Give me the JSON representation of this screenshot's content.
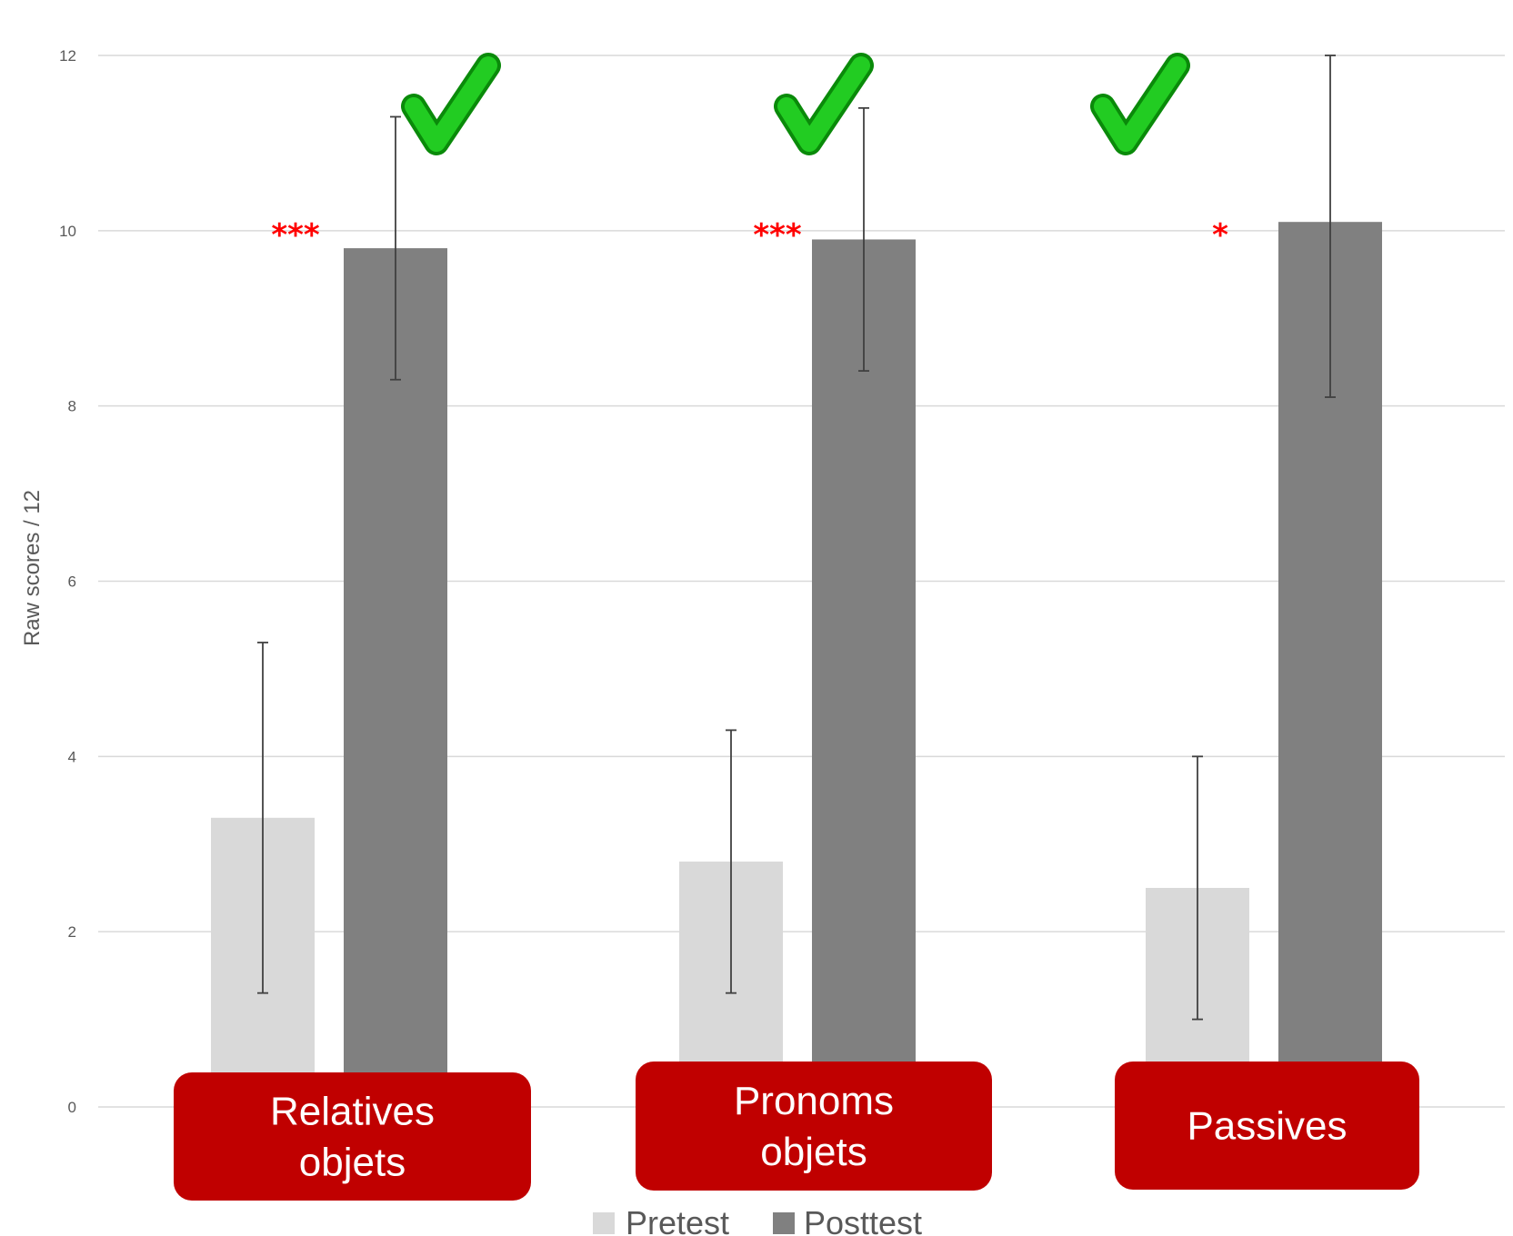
{
  "chart_data": {
    "type": "bar",
    "categories": [
      [
        "Relatives",
        "objets"
      ],
      [
        "Pronoms",
        "objets"
      ],
      [
        "Passives"
      ]
    ],
    "series": [
      {
        "name": "Pretest",
        "values": [
          3.3,
          2.8,
          2.5
        ],
        "error_low": [
          1.3,
          1.3,
          1.0
        ],
        "error_high": [
          5.3,
          4.3,
          4.0
        ],
        "color": "#d9d9d9"
      },
      {
        "name": "Posttest",
        "values": [
          9.8,
          9.9,
          10.1
        ],
        "error_low": [
          8.3,
          8.4,
          8.1
        ],
        "error_high": [
          11.3,
          11.4,
          12.0
        ],
        "color": "#808080"
      }
    ],
    "ylabel": "Raw scores / 12",
    "ylim": [
      0,
      12
    ],
    "yticks": [
      0,
      2,
      4,
      6,
      8,
      10,
      12
    ],
    "grid": true,
    "legend_position": "bottom",
    "significance": [
      "***",
      "***",
      "*"
    ],
    "check_marks": [
      true,
      true,
      true
    ],
    "colors": {
      "category_box": "#c00000",
      "significance": "#ff0000",
      "check": "#22cc22",
      "grid": "#d9d9d9",
      "axis_text": "#595959"
    }
  }
}
